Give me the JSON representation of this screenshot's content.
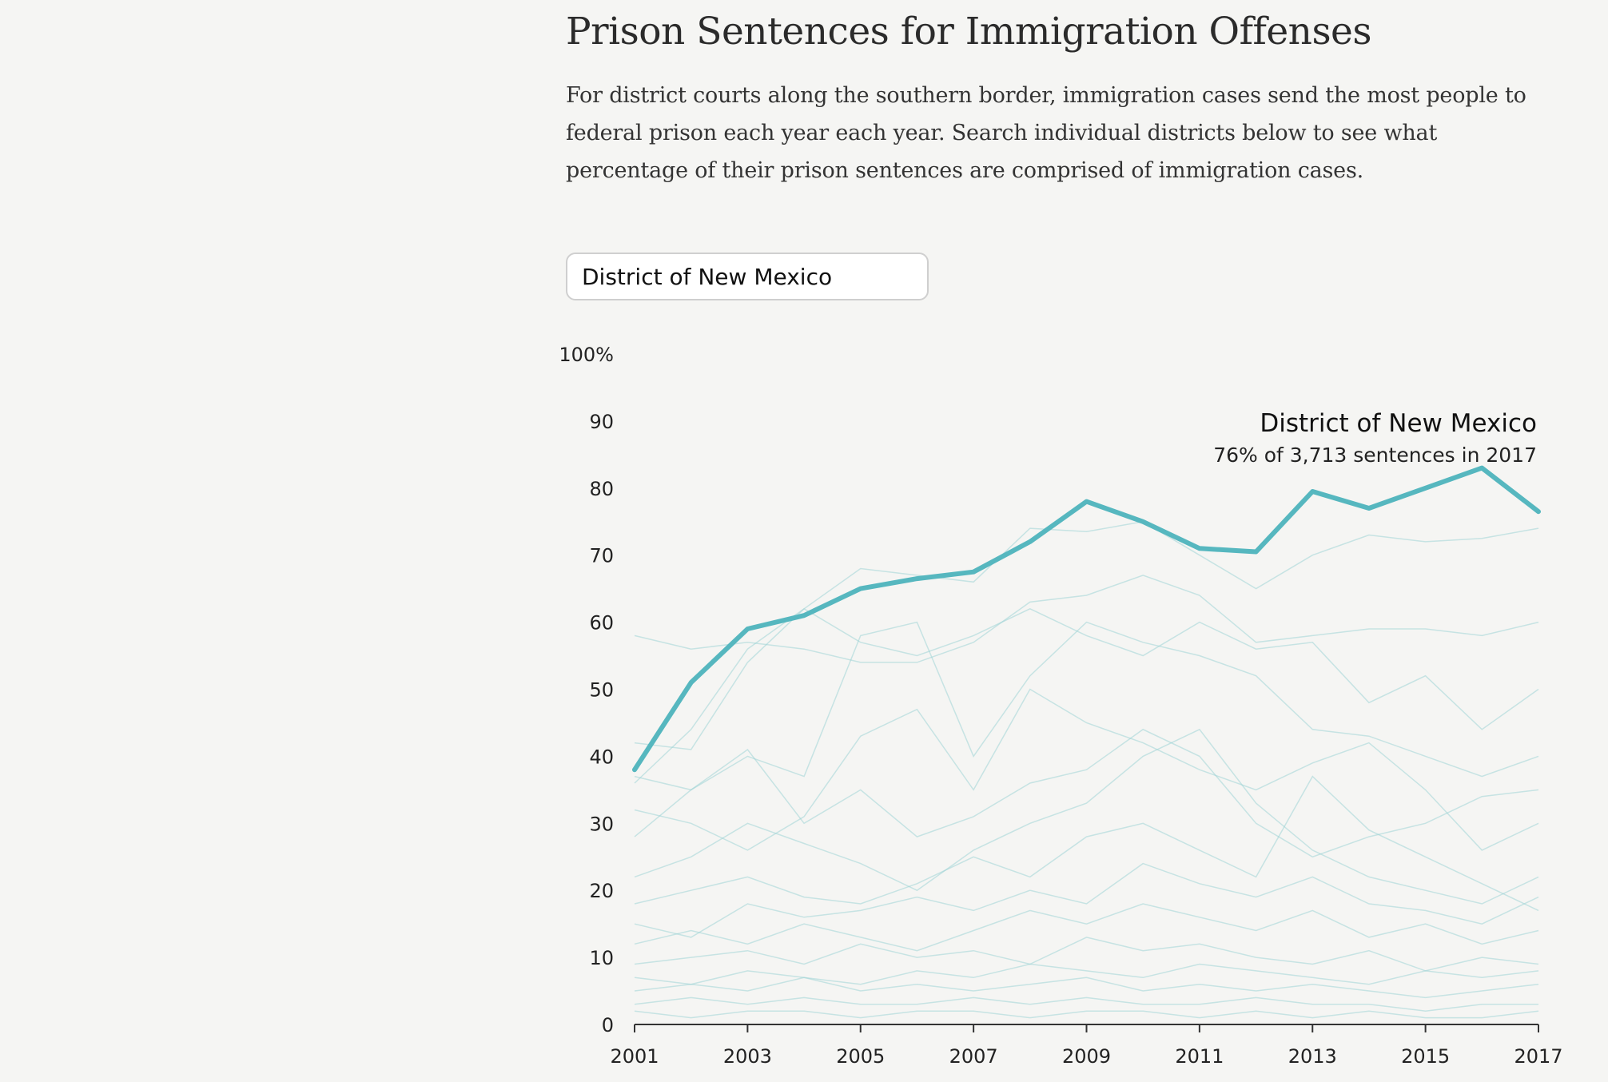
{
  "header": {
    "title": "Prison Sentences for Immigration Offenses",
    "subtitle": "For district courts along the southern border, immigration cases send the most people to federal prison each year each year. Search individual districts below to see what percentage of their prison sentences are comprised of immigration cases."
  },
  "search": {
    "value": "District of New Mexico"
  },
  "annotation": {
    "name": "District of New Mexico",
    "detail": "76% of 3,713 sentences in 2017"
  },
  "colors": {
    "highlight": "#56b7bf",
    "background_lines": "#9fd3d6"
  },
  "chart_data": {
    "type": "line",
    "title": "",
    "xlabel": "",
    "ylabel": "",
    "x": [
      2001,
      2002,
      2003,
      2004,
      2005,
      2006,
      2007,
      2008,
      2009,
      2010,
      2011,
      2012,
      2013,
      2014,
      2015,
      2016,
      2017
    ],
    "xlim": [
      2001,
      2017
    ],
    "ylim": [
      0,
      100
    ],
    "y_ticks": [
      "0",
      "10",
      "20",
      "30",
      "40",
      "50",
      "60",
      "70",
      "80",
      "90",
      "100%"
    ],
    "x_ticks": [
      "2001",
      "2003",
      "2005",
      "2007",
      "2009",
      "2011",
      "2013",
      "2015",
      "2017"
    ],
    "grid": false,
    "highlighted_series": "District of New Mexico",
    "series": [
      {
        "name": "District of New Mexico",
        "highlighted": true,
        "values": [
          38,
          51,
          59,
          61,
          65,
          66.5,
          67.5,
          72,
          78,
          75,
          71,
          70.5,
          79.5,
          77,
          80,
          83,
          76.5
        ]
      },
      {
        "highlighted": false,
        "values": [
          36,
          44,
          56,
          62,
          68,
          67,
          66,
          74,
          73.5,
          75,
          70,
          65,
          70,
          73,
          72,
          72.5,
          74
        ]
      },
      {
        "highlighted": false,
        "values": [
          58,
          56,
          57,
          56,
          54,
          54,
          57,
          63,
          64,
          67,
          64,
          57,
          58,
          59,
          59,
          58,
          60
        ]
      },
      {
        "highlighted": false,
        "values": [
          42,
          41,
          54,
          62,
          57,
          55,
          58,
          62,
          58,
          55,
          60,
          56,
          57,
          48,
          52,
          44,
          50
        ]
      },
      {
        "highlighted": false,
        "values": [
          37,
          35,
          40,
          37,
          58,
          60,
          40,
          52,
          60,
          57,
          55,
          52,
          44,
          43,
          40,
          37,
          40
        ]
      },
      {
        "highlighted": false,
        "values": [
          32,
          30,
          26,
          31,
          43,
          47,
          35,
          50,
          45,
          42,
          38,
          35,
          39,
          42,
          35,
          26,
          30
        ]
      },
      {
        "highlighted": false,
        "values": [
          28,
          35,
          41,
          30,
          35,
          28,
          31,
          36,
          38,
          44,
          40,
          30,
          25,
          28,
          30,
          34,
          35
        ]
      },
      {
        "highlighted": false,
        "values": [
          22,
          25,
          30,
          27,
          24,
          20,
          26,
          30,
          33,
          40,
          44,
          33,
          26,
          22,
          20,
          18,
          22
        ]
      },
      {
        "highlighted": false,
        "values": [
          18,
          20,
          22,
          19,
          18,
          21,
          25,
          22,
          28,
          30,
          26,
          22,
          37,
          29,
          25,
          21,
          17
        ]
      },
      {
        "highlighted": false,
        "values": [
          15,
          13,
          18,
          16,
          17,
          19,
          17,
          20,
          18,
          24,
          21,
          19,
          22,
          18,
          17,
          15,
          19
        ]
      },
      {
        "highlighted": false,
        "values": [
          12,
          14,
          12,
          15,
          13,
          11,
          14,
          17,
          15,
          18,
          16,
          14,
          17,
          13,
          15,
          12,
          14
        ]
      },
      {
        "highlighted": false,
        "values": [
          9,
          10,
          11,
          9,
          12,
          10,
          11,
          9,
          13,
          11,
          12,
          10,
          9,
          11,
          8,
          10,
          9
        ]
      },
      {
        "highlighted": false,
        "values": [
          7,
          6,
          8,
          7,
          6,
          8,
          7,
          9,
          8,
          7,
          9,
          8,
          7,
          6,
          8,
          7,
          8
        ]
      },
      {
        "highlighted": false,
        "values": [
          5,
          6,
          5,
          7,
          5,
          6,
          5,
          6,
          7,
          5,
          6,
          5,
          6,
          5,
          4,
          5,
          6
        ]
      },
      {
        "highlighted": false,
        "values": [
          3,
          4,
          3,
          4,
          3,
          3,
          4,
          3,
          4,
          3,
          3,
          4,
          3,
          3,
          2,
          3,
          3
        ]
      },
      {
        "highlighted": false,
        "values": [
          2,
          1,
          2,
          2,
          1,
          2,
          2,
          1,
          2,
          2,
          1,
          2,
          1,
          2,
          1,
          1,
          2
        ]
      }
    ]
  }
}
